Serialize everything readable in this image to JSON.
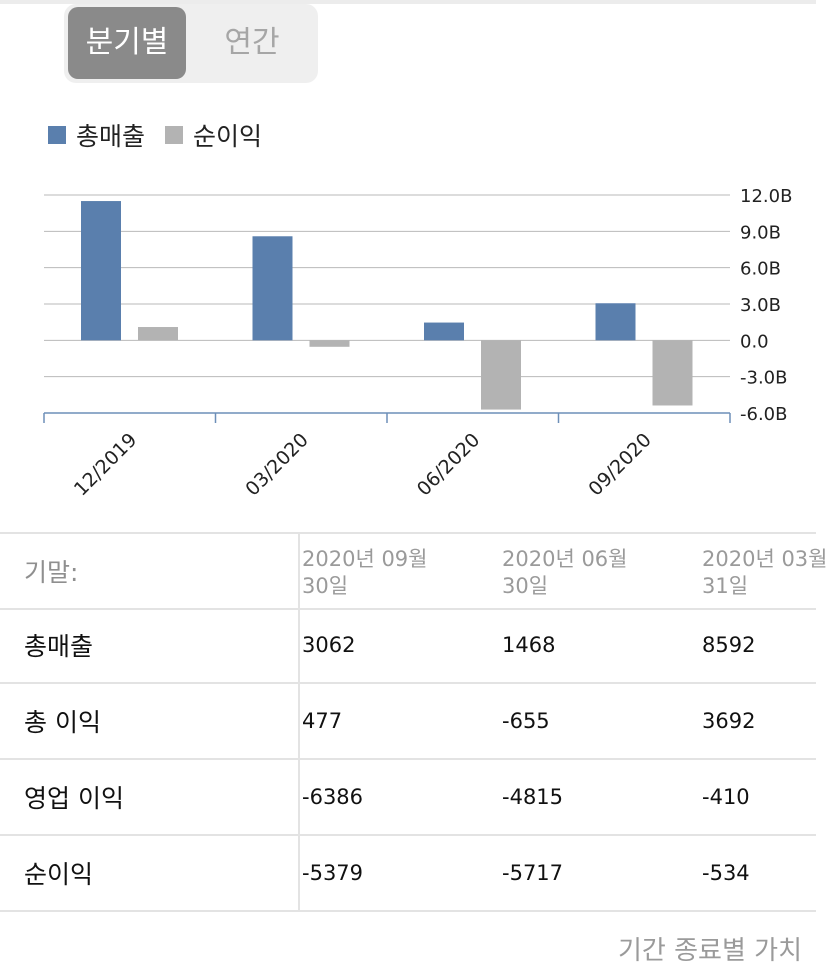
{
  "period_toggle": {
    "quarterly_label": "분기별",
    "annual_label": "연간",
    "selected": "quarterly"
  },
  "chart_data": {
    "type": "bar",
    "categories": [
      "12/2019",
      "03/2020",
      "06/2020",
      "09/2020"
    ],
    "series": [
      {
        "name": "총매출",
        "color": "#5a7fad",
        "values": [
          11.5,
          8.592,
          1.468,
          3.062
        ]
      },
      {
        "name": "순이익",
        "color": "#b3b3b3",
        "values": [
          1.1,
          -0.534,
          -5.717,
          -5.379
        ]
      }
    ],
    "y_ticks": [
      {
        "value": 12.0,
        "label": "12.0B"
      },
      {
        "value": 9.0,
        "label": "9.0B"
      },
      {
        "value": 6.0,
        "label": "6.0B"
      },
      {
        "value": 3.0,
        "label": "3.0B"
      },
      {
        "value": 0.0,
        "label": "0.0"
      },
      {
        "value": -3.0,
        "label": "-3.0B"
      },
      {
        "value": -6.0,
        "label": "-6.0B"
      }
    ],
    "ylim": [
      -6,
      12
    ],
    "y_axis_side": "right",
    "grid": true,
    "legend_position": "top-left"
  },
  "table": {
    "header_label": "기말:",
    "columns": [
      {
        "line1": "2020년 09월",
        "line2": "30일"
      },
      {
        "line1": "2020년 06월",
        "line2": "30일"
      },
      {
        "line1": "2020년 03월",
        "line2": "31일"
      }
    ],
    "rows": [
      {
        "label": "총매출",
        "values": [
          "3062",
          "1468",
          "8592"
        ]
      },
      {
        "label": "총 이익",
        "values": [
          "477",
          "-655",
          "3692"
        ]
      },
      {
        "label": "영업 이익",
        "values": [
          "-6386",
          "-4815",
          "-410"
        ]
      },
      {
        "label": "순이익",
        "values": [
          "-5379",
          "-5717",
          "-534"
        ]
      }
    ]
  },
  "footer": {
    "text": "기간 종료별 가치"
  }
}
